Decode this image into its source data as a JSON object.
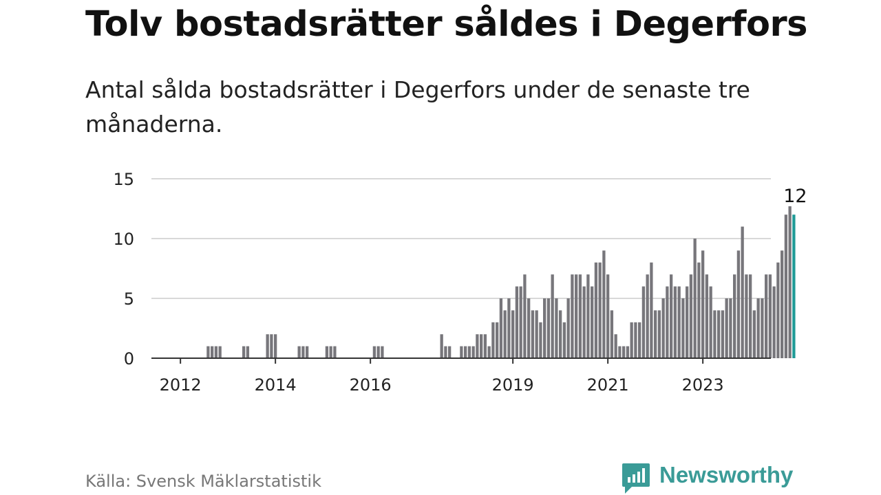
{
  "title": "Tolv bostadsrätter såldes i Degerfors",
  "subtitle": "Antal sålda bostadsrätter i Degerfors under de senaste tre månaderna.",
  "source": "Källa: Svensk Mäklarstatistik",
  "brand": {
    "name": "Newsworthy",
    "icon": "newsworthy-logo-icon",
    "color": "#3a9b97"
  },
  "chart_data": {
    "type": "bar",
    "x": {
      "start": "2012-01",
      "frequency": "monthly",
      "tick_labels": [
        "2012",
        "2014",
        "2016",
        "2019",
        "2021",
        "2023"
      ]
    },
    "values": [
      0,
      0,
      0,
      0,
      0,
      0,
      0,
      1,
      1,
      1,
      1,
      0,
      0,
      0,
      0,
      0,
      1,
      1,
      0,
      0,
      0,
      0,
      2,
      2,
      2,
      0,
      0,
      0,
      0,
      0,
      1,
      1,
      1,
      0,
      0,
      0,
      0,
      1,
      1,
      1,
      0,
      0,
      0,
      0,
      0,
      0,
      0,
      0,
      0,
      1,
      1,
      1,
      0,
      0,
      0,
      0,
      0,
      0,
      0,
      0,
      0,
      0,
      0,
      0,
      0,
      0,
      2,
      1,
      1,
      0,
      0,
      1,
      1,
      1,
      1,
      2,
      2,
      2,
      1,
      3,
      3,
      5,
      4,
      5,
      4,
      6,
      6,
      7,
      5,
      4,
      4,
      3,
      5,
      5,
      7,
      5,
      4,
      3,
      5,
      7,
      7,
      7,
      6,
      7,
      6,
      8,
      8,
      9,
      7,
      4,
      2,
      1,
      1,
      1,
      3,
      3,
      3,
      6,
      7,
      8,
      4,
      4,
      5,
      6,
      7,
      6,
      6,
      5,
      6,
      7,
      10,
      8,
      9,
      7,
      6,
      4,
      4,
      4,
      5,
      5,
      7,
      9,
      11,
      7,
      7,
      4,
      5,
      5,
      7,
      7,
      6,
      8,
      9,
      12,
      12.7,
      12
    ],
    "highlight": {
      "value": 12,
      "label": "12",
      "color": "#1f9a96"
    },
    "bar_color": "#77767b",
    "yticks": [
      0,
      5,
      10,
      15
    ],
    "ylim": [
      0,
      15
    ],
    "grid": true,
    "xlabel": "",
    "ylabel": ""
  }
}
